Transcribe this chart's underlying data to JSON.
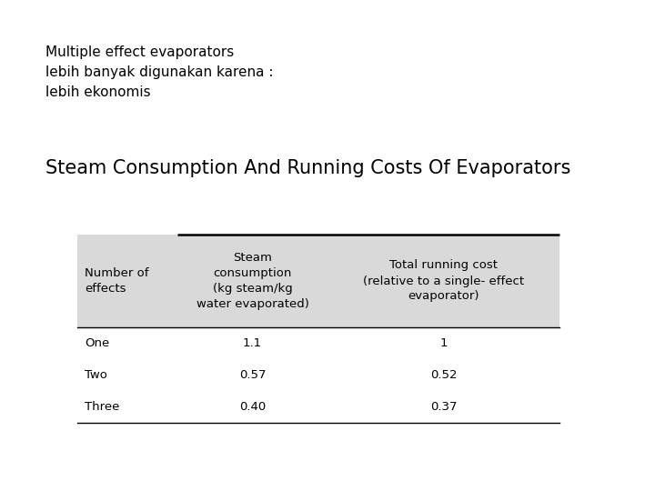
{
  "subtitle_line1": "Multiple effect evaporators",
  "subtitle_line2": "lebih banyak digunakan karena :",
  "subtitle_line3": "lebih ekonomis",
  "section_title": "Steam Consumption And Running Costs Of Evaporators",
  "table_header_col1": "Number of\neffects",
  "table_header_col2": "Steam\nconsumption\n(kg steam/kg\nwater evaporated)",
  "table_header_col3": "Total running cost\n(relative to a single- effect\nevaporator)",
  "rows": [
    [
      "One",
      "1.1",
      "1"
    ],
    [
      "Two",
      "0.57",
      "0.52"
    ],
    [
      "Three",
      "0.40",
      "0.37"
    ]
  ],
  "header_bg": "#d9d9d9",
  "bg_color": "#ffffff",
  "text_color": "#000000",
  "font_size_subtitle": 11,
  "font_size_section_title": 15,
  "font_size_table": 9.5
}
